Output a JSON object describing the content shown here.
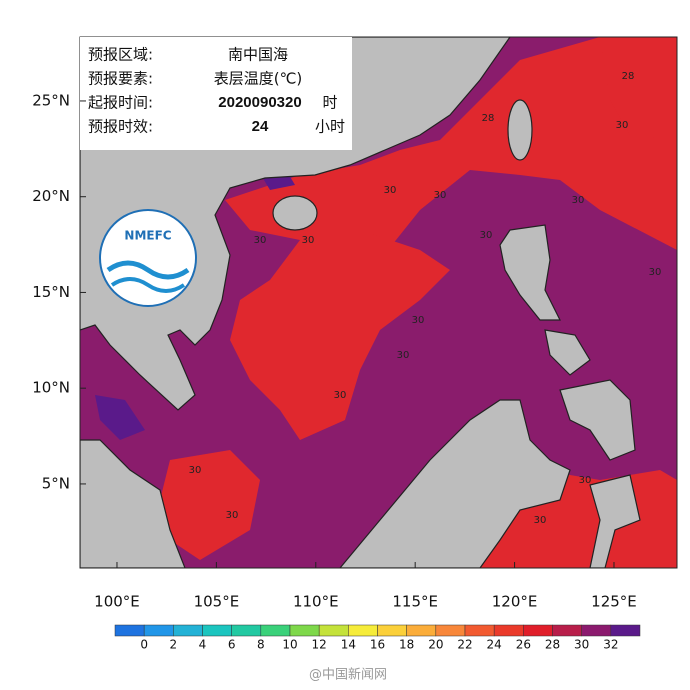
{
  "info": [
    {
      "label": "预报区域:",
      "value": "南中国海"
    },
    {
      "label": "预报要素:",
      "value": "表层温度(℃)"
    },
    {
      "label": "起报时间:",
      "value": "2020090320",
      "unit": "时"
    },
    {
      "label": "预报时效:",
      "value": "24",
      "unit": "小时"
    }
  ],
  "map": {
    "xlim": [
      98.14,
      128.17
    ],
    "ylim": [
      0.61,
      28.34
    ],
    "lon_ticks": [
      {
        "value": 100,
        "label": "100°E"
      },
      {
        "value": 105,
        "label": "105°E"
      },
      {
        "value": 110,
        "label": "110°E"
      },
      {
        "value": 115,
        "label": "115°E"
      },
      {
        "value": 120,
        "label": "120°E"
      },
      {
        "value": 125,
        "label": "125°E"
      }
    ],
    "lat_ticks": [
      {
        "value": 5,
        "label": "5°N"
      },
      {
        "value": 10,
        "label": "10°N"
      },
      {
        "value": 15,
        "label": "15°N"
      },
      {
        "value": 20,
        "label": "20°N"
      },
      {
        "value": 25,
        "label": "25°N"
      }
    ],
    "contour_labels": [
      28,
      28,
      30,
      30,
      30,
      30,
      30,
      30,
      30,
      30,
      30,
      30,
      30,
      30,
      30,
      30,
      30
    ]
  },
  "colorbar": {
    "ticks": [
      0,
      2,
      4,
      6,
      8,
      10,
      12,
      14,
      16,
      18,
      20,
      22,
      24,
      26,
      28,
      30,
      32
    ],
    "colors": [
      "#1e73e0",
      "#2196e8",
      "#23b2d6",
      "#1bc5bf",
      "#22c9a2",
      "#3ad17a",
      "#7ed84a",
      "#c4e23a",
      "#f6ec3a",
      "#fbd03a",
      "#fbad3a",
      "#f8873a",
      "#f25a30",
      "#ea3a2a",
      "#e01e2a",
      "#b81e4a",
      "#8b1a6e",
      "#5a1a8a"
    ]
  },
  "logo": "NMEFC",
  "watermark": "@中国新闻网"
}
